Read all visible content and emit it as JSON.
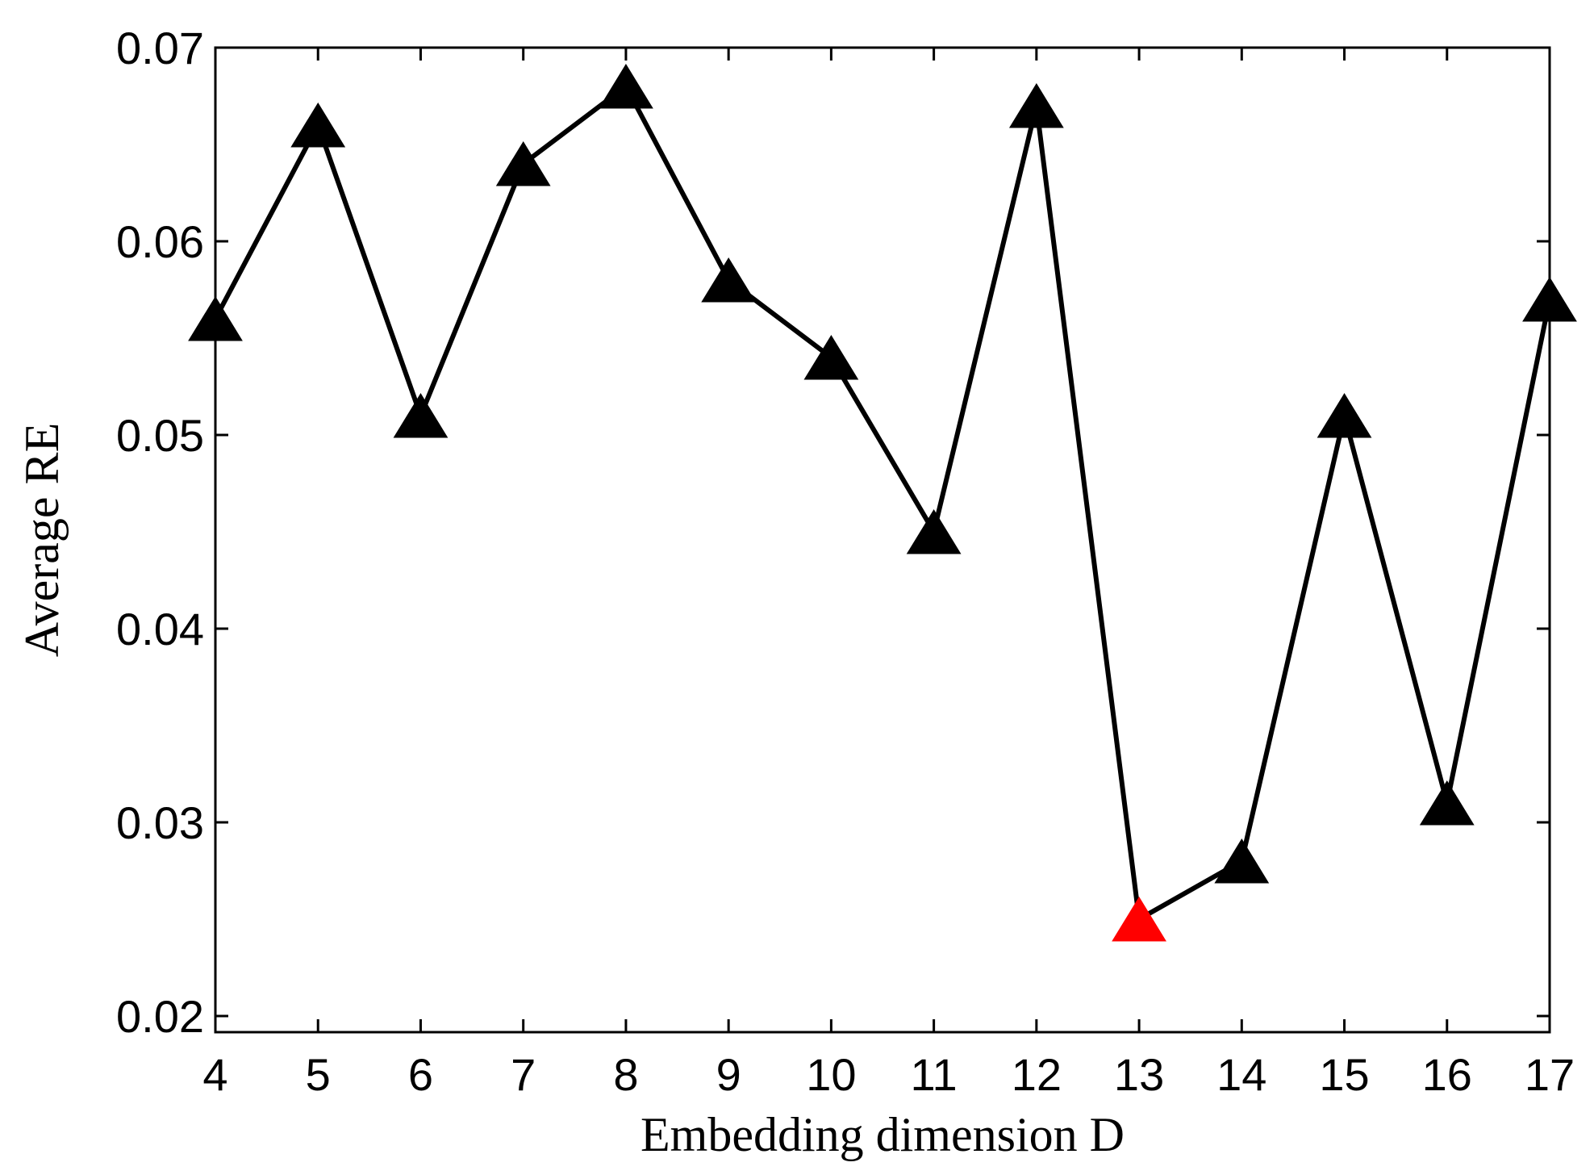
{
  "chart_data": {
    "type": "line",
    "title": "",
    "xlabel": "Embedding dimension D",
    "ylabel": "Average RE",
    "xlim": [
      4,
      17
    ],
    "ylim": [
      0.02,
      0.07
    ],
    "grid": false,
    "x_ticks": [
      "4",
      "5",
      "6",
      "7",
      "8",
      "9",
      "10",
      "11",
      "12",
      "13",
      "14",
      "15",
      "16",
      "17"
    ],
    "y_ticks": [
      "0.02",
      "0.03",
      "0.04",
      "0.05",
      "0.06",
      "0.07"
    ],
    "x": [
      4,
      5,
      6,
      7,
      8,
      9,
      10,
      11,
      12,
      13,
      14,
      15,
      16,
      17
    ],
    "series": [
      {
        "values": [
          0.056,
          0.066,
          0.051,
          0.064,
          0.068,
          0.058,
          0.054,
          0.045,
          0.067,
          0.025,
          0.028,
          0.051,
          0.031,
          0.057
        ],
        "color": "#000000",
        "marker": "triangle",
        "highlight_index": 9,
        "highlight_color": "#ff0000"
      }
    ]
  }
}
